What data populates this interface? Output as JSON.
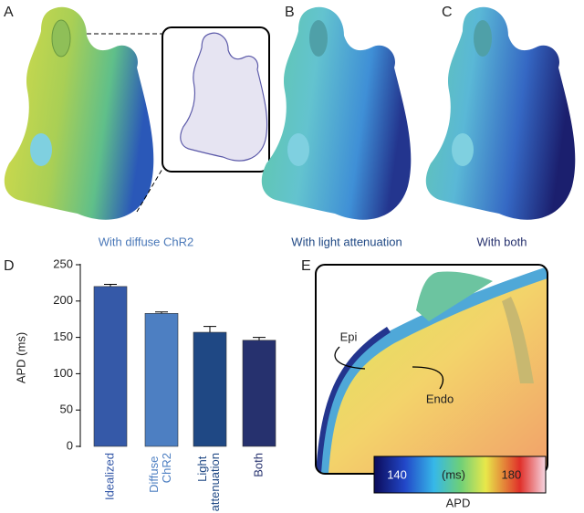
{
  "panels": {
    "a": {
      "label": "A",
      "caption": "With diffuse ChR2"
    },
    "b": {
      "label": "B",
      "caption": "With light attenuation"
    },
    "c": {
      "label": "C",
      "caption": "With both"
    },
    "e": {
      "label": "E",
      "annotations": [
        "Epi",
        "Endo"
      ],
      "colorbar": {
        "lim": [
          132,
          192
        ],
        "ticks": [
          140,
          180
        ],
        "unit": "(ms)",
        "title": "APD"
      }
    }
  },
  "chart_data": {
    "type": "bar",
    "label": "D",
    "categories": [
      "Idealized",
      "Diffuse ChR2",
      "Light attenuation",
      "Both"
    ],
    "values": [
      220,
      183,
      157,
      146
    ],
    "errors": [
      3,
      2,
      8,
      4
    ],
    "colors": [
      "#3559a8",
      "#4d7fc2",
      "#1f4884",
      "#26316e"
    ],
    "ylabel": "APD (ms)",
    "ylim": [
      0,
      250
    ],
    "yticks": [
      0,
      50,
      100,
      150,
      200,
      250
    ]
  }
}
